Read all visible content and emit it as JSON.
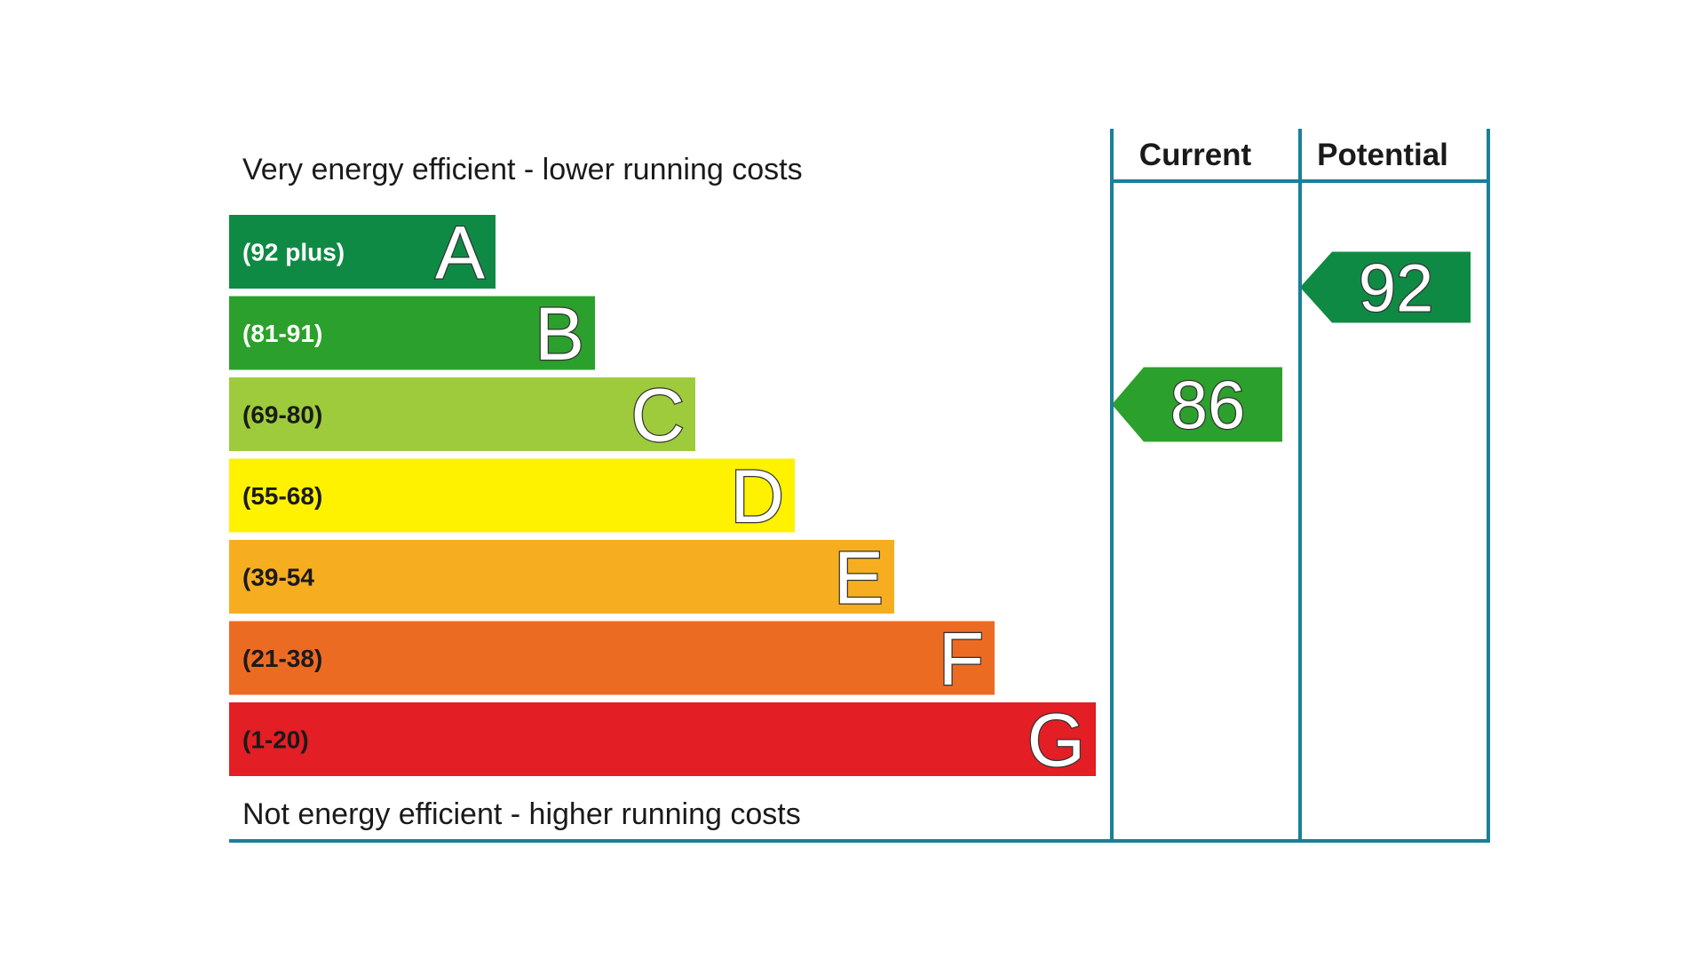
{
  "chart_data": {
    "type": "bar",
    "top_label": "Very energy efficient - lower running costs",
    "bottom_label": "Not energy efficient - higher running costs",
    "columns": [
      "Current",
      "Potential"
    ],
    "bands": [
      {
        "letter": "A",
        "range": "(92 plus)",
        "min": 92,
        "max": 100,
        "color": "#0f8a45",
        "text_color": "#ffffff"
      },
      {
        "letter": "B",
        "range": "(81-91)",
        "min": 81,
        "max": 91,
        "color": "#2ca02c",
        "text_color": "#ffffff"
      },
      {
        "letter": "C",
        "range": "(69-80)",
        "min": 69,
        "max": 80,
        "color": "#9dcb3b",
        "text_color": "#1a1a1a"
      },
      {
        "letter": "D",
        "range": "(55-68)",
        "min": 55,
        "max": 68,
        "color": "#fff200",
        "text_color": "#1a1a1a"
      },
      {
        "letter": "E",
        "range": "(39-54",
        "min": 39,
        "max": 54,
        "color": "#f6ae20",
        "text_color": "#1a1a1a"
      },
      {
        "letter": "F",
        "range": "(21-38)",
        "min": 21,
        "max": 38,
        "color": "#ec6b23",
        "text_color": "#1a1a1a"
      },
      {
        "letter": "G",
        "range": "(1-20)",
        "min": 1,
        "max": 20,
        "color": "#e31e24",
        "text_color": "#1a1a1a"
      }
    ],
    "ratings": {
      "current": {
        "value": 86,
        "band": "B",
        "color": "#2ca02c"
      },
      "potential": {
        "value": 92,
        "band": "A",
        "color": "#0f8a45"
      }
    },
    "frame_color": "#1b7f9a"
  }
}
